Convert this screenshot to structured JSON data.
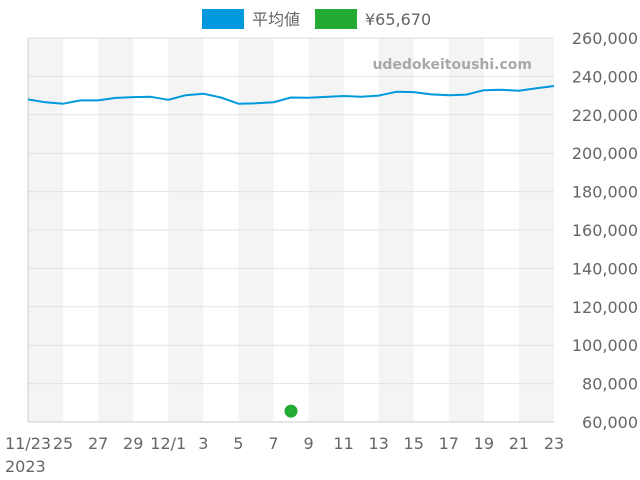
{
  "chart_data": {
    "type": "line",
    "watermark": "udedokeitoushi.com",
    "x_labels": [
      "11/23",
      "25",
      "27",
      "29",
      "12/1",
      "3",
      "5",
      "7",
      "9",
      "11",
      "13",
      "15",
      "17",
      "19",
      "21",
      "23"
    ],
    "x_sub_label": "2023",
    "y_ticks": [
      "60,000",
      "80,000",
      "100,000",
      "120,000",
      "140,000",
      "160,000",
      "180,000",
      "200,000",
      "220,000",
      "240,000",
      "260,000"
    ],
    "ylim": [
      60000,
      260000
    ],
    "grid": true,
    "legend_position": "top",
    "series": [
      {
        "name": "平均値",
        "color": "#0099dd",
        "values": [
          228000,
          226500,
          225800,
          227500,
          227500,
          228800,
          229200,
          229400,
          227800,
          230200,
          231000,
          229000,
          225800,
          226000,
          226500,
          229000,
          228900,
          229300,
          229800,
          229400,
          230000,
          232000,
          231800,
          230600,
          230200,
          230500,
          232800,
          233000,
          232500,
          233800,
          235000
        ]
      },
      {
        "name": "¥65,670",
        "color": "#22aa33",
        "points": [
          {
            "x_index": 15,
            "y": 65670
          }
        ]
      }
    ]
  }
}
